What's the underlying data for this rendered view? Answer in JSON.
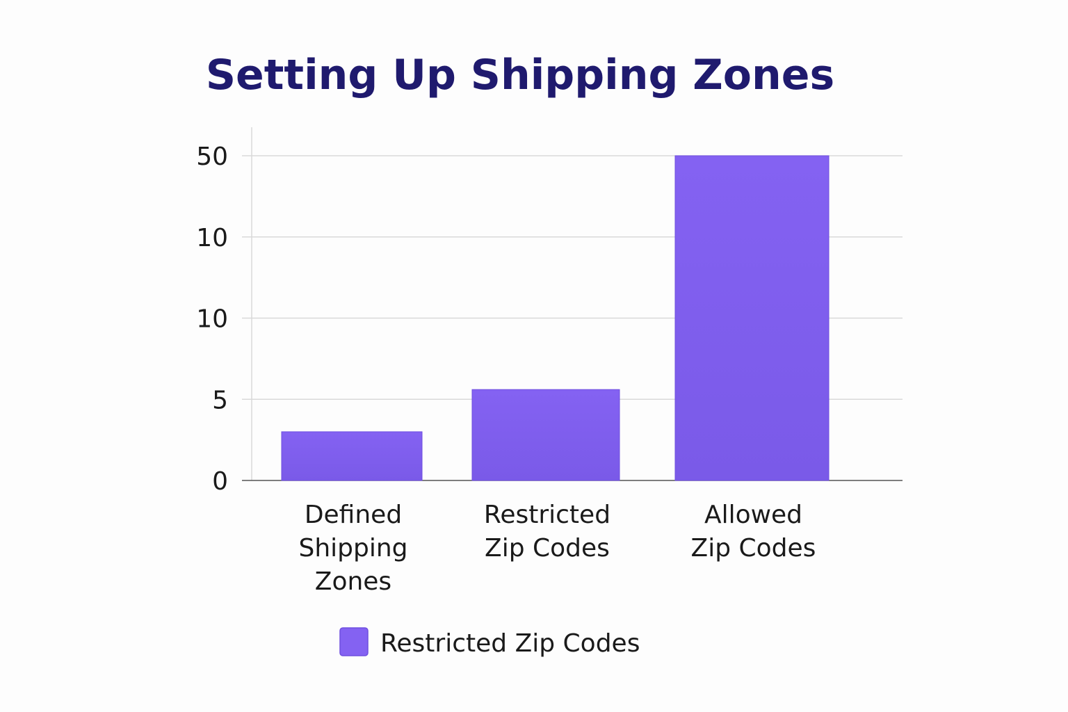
{
  "colors": {
    "title": "#1f1a6e",
    "bar": "#8462f2",
    "bar_edge": "#6f4fe0",
    "grid": "#d9d9d9",
    "axis": "#555555"
  },
  "chart_data": {
    "type": "bar",
    "title": "Setting Up Shipping Zones",
    "xlabel": "",
    "ylabel": "",
    "categories": [
      [
        "Defined",
        "Shipping",
        "Zones"
      ],
      [
        "Restricted",
        "Zip Codes"
      ],
      [
        "Allowed",
        "Zip Codes"
      ]
    ],
    "yticks": [
      "0",
      "5",
      "10",
      "10",
      "50"
    ],
    "values": [
      3,
      5.6,
      50
    ],
    "series": [
      {
        "name": "Restricted Zip Codes",
        "values": [
          3,
          5.6,
          50
        ]
      }
    ],
    "grid": true,
    "legend_position": "bottom"
  }
}
